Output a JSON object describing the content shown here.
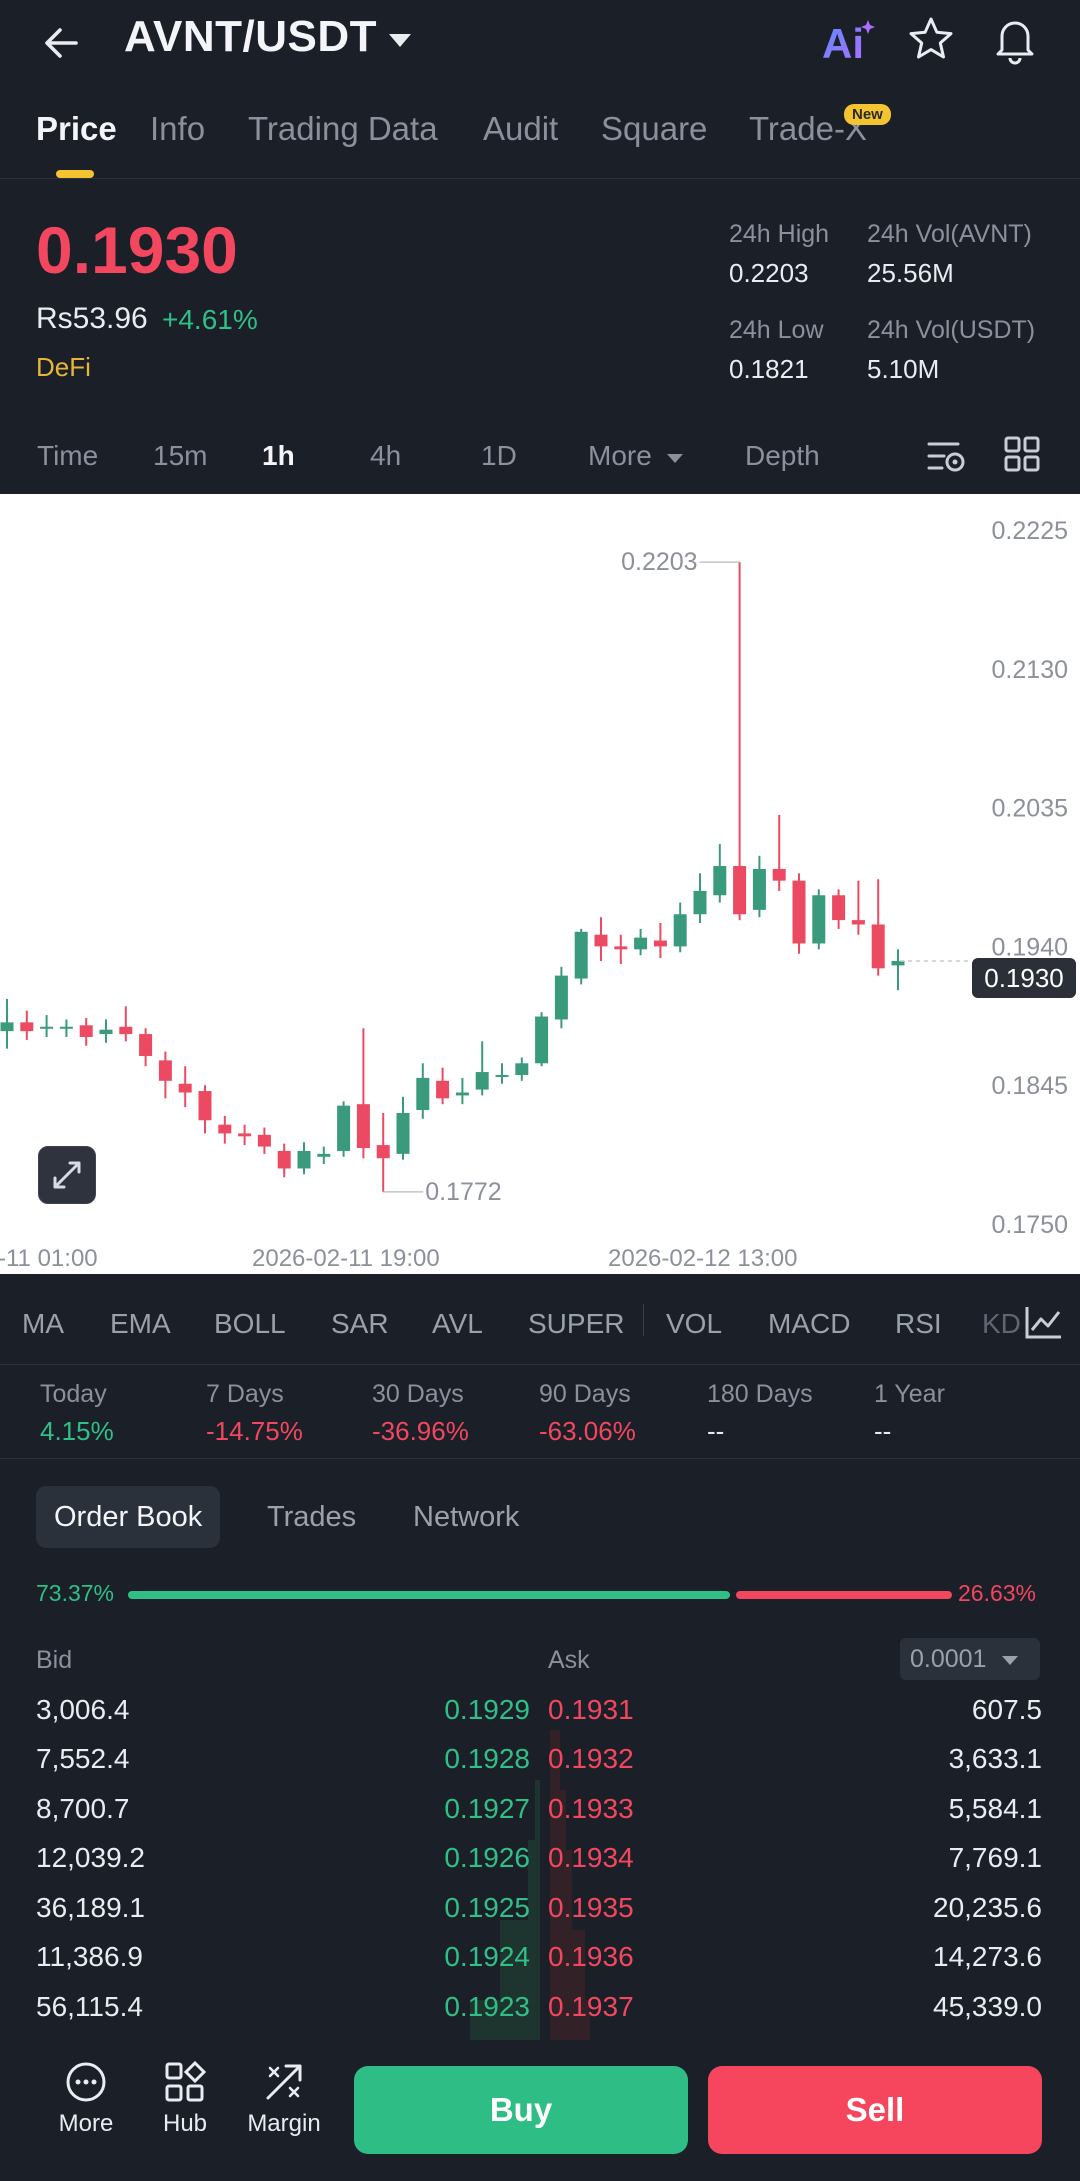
{
  "header": {
    "pair": "AVNT/USDT",
    "ai_label": "Ai"
  },
  "tabs": [
    {
      "label": "Price"
    },
    {
      "label": "Info"
    },
    {
      "label": "Trading Data"
    },
    {
      "label": "Audit"
    },
    {
      "label": "Square"
    },
    {
      "label": "Trade-X"
    }
  ],
  "new_badge": "New",
  "ticker": {
    "last": "0.1930",
    "fiat": "Rs53.96",
    "change": "+4.61%",
    "category": "DeFi",
    "high_label": "24h High",
    "high": "0.2203",
    "vol_base_label": "24h Vol(AVNT)",
    "vol_base": "25.56M",
    "low_label": "24h Low",
    "low": "0.1821",
    "vol_quote_label": "24h Vol(USDT)",
    "vol_quote": "5.10M"
  },
  "intervals": [
    {
      "label": "Time"
    },
    {
      "label": "15m"
    },
    {
      "label": "1h"
    },
    {
      "label": "4h"
    },
    {
      "label": "1D"
    },
    {
      "label": "More"
    },
    {
      "label": "Depth"
    }
  ],
  "chart_data": {
    "type": "candlestick",
    "y_ticks": [
      "0.2225",
      "0.2130",
      "0.2035",
      "0.1940",
      "0.1845",
      "0.1750"
    ],
    "ylim": [
      0.175,
      0.2225
    ],
    "x_ticks": [
      "-11 01:00",
      "2026-02-11 19:00",
      "2026-02-12 13:00"
    ],
    "current_price": "0.1930",
    "max_label": "0.2203",
    "min_label": "0.1772",
    "colors": {
      "up": "#3a9a7c",
      "down": "#ec4a62"
    },
    "candles": [
      [
        0.1882,
        0.1888,
        0.1904,
        0.187
      ],
      [
        0.1888,
        0.1882,
        0.1896,
        0.1876
      ],
      [
        0.1884,
        0.1885,
        0.1893,
        0.1878
      ],
      [
        0.1884,
        0.1885,
        0.189,
        0.1878
      ],
      [
        0.1886,
        0.1878,
        0.1891,
        0.1872
      ],
      [
        0.188,
        0.1883,
        0.189,
        0.1874
      ],
      [
        0.1885,
        0.188,
        0.1899,
        0.1875
      ],
      [
        0.188,
        0.1865,
        0.1884,
        0.1858
      ],
      [
        0.1862,
        0.1848,
        0.1868,
        0.1836
      ],
      [
        0.1846,
        0.184,
        0.1858,
        0.183
      ],
      [
        0.1841,
        0.1821,
        0.1845,
        0.1812
      ],
      [
        0.1818,
        0.1812,
        0.1824,
        0.1805
      ],
      [
        0.1812,
        0.181,
        0.1818,
        0.1804
      ],
      [
        0.1811,
        0.1803,
        0.1816,
        0.1798
      ],
      [
        0.18,
        0.1788,
        0.1805,
        0.1782
      ],
      [
        0.1788,
        0.18,
        0.1806,
        0.1784
      ],
      [
        0.1796,
        0.1798,
        0.1803,
        0.1791
      ],
      [
        0.18,
        0.1831,
        0.1834,
        0.1796
      ],
      [
        0.1832,
        0.1802,
        0.1884,
        0.1795
      ],
      [
        0.1804,
        0.1795,
        0.1826,
        0.1772
      ],
      [
        0.1798,
        0.1826,
        0.1837,
        0.1794
      ],
      [
        0.1828,
        0.185,
        0.186,
        0.1822
      ],
      [
        0.1848,
        0.1836,
        0.1857,
        0.1832
      ],
      [
        0.1838,
        0.184,
        0.185,
        0.1832
      ],
      [
        0.1842,
        0.1854,
        0.1875,
        0.1838
      ],
      [
        0.1852,
        0.1852,
        0.186,
        0.1846
      ],
      [
        0.1852,
        0.186,
        0.1864,
        0.1848
      ],
      [
        0.186,
        0.1892,
        0.1895,
        0.1858
      ],
      [
        0.189,
        0.192,
        0.1926,
        0.1884
      ],
      [
        0.1918,
        0.195,
        0.1952,
        0.1914
      ],
      [
        0.1948,
        0.194,
        0.196,
        0.193
      ],
      [
        0.194,
        0.1938,
        0.1948,
        0.1928
      ],
      [
        0.1938,
        0.1946,
        0.1952,
        0.1934
      ],
      [
        0.1944,
        0.194,
        0.1956,
        0.1932
      ],
      [
        0.194,
        0.1962,
        0.197,
        0.1936
      ],
      [
        0.1962,
        0.1978,
        0.199,
        0.1956
      ],
      [
        0.1975,
        0.1995,
        0.201,
        0.197
      ],
      [
        0.1995,
        0.1962,
        0.2203,
        0.1958
      ],
      [
        0.1965,
        0.1993,
        0.2002,
        0.196
      ],
      [
        0.1993,
        0.1985,
        0.203,
        0.1978
      ],
      [
        0.1985,
        0.1942,
        0.199,
        0.1935
      ],
      [
        0.1942,
        0.1975,
        0.1979,
        0.1938
      ],
      [
        0.1975,
        0.1958,
        0.1979,
        0.1952
      ],
      [
        0.1958,
        0.1955,
        0.1985,
        0.1948
      ],
      [
        0.1955,
        0.1925,
        0.1986,
        0.192
      ],
      [
        0.1927,
        0.193,
        0.1938,
        0.191
      ]
    ]
  },
  "indicators": [
    "MA",
    "EMA",
    "BOLL",
    "SAR",
    "AVL",
    "SUPER",
    "VOL",
    "MACD",
    "RSI",
    "KD"
  ],
  "performance": [
    {
      "label": "Today",
      "value": "4.15%",
      "dir": "up"
    },
    {
      "label": "7 Days",
      "value": "-14.75%",
      "dir": "down"
    },
    {
      "label": "30 Days",
      "value": "-36.96%",
      "dir": "down"
    },
    {
      "label": "90 Days",
      "value": "-63.06%",
      "dir": "down"
    },
    {
      "label": "180 Days",
      "value": "--",
      "dir": "none"
    },
    {
      "label": "1 Year",
      "value": "--",
      "dir": "none"
    }
  ],
  "orderbook": {
    "tabs": [
      {
        "label": "Order Book"
      },
      {
        "label": "Trades"
      },
      {
        "label": "Network"
      }
    ],
    "buy_ratio": "73.37%",
    "sell_ratio": "26.63%",
    "bid_label": "Bid",
    "ask_label": "Ask",
    "precision": "0.0001",
    "rows": [
      {
        "bid_qty": "3,006.4",
        "bid": "0.1929",
        "ask": "0.1931",
        "ask_qty": "607.5"
      },
      {
        "bid_qty": "7,552.4",
        "bid": "0.1928",
        "ask": "0.1932",
        "ask_qty": "3,633.1"
      },
      {
        "bid_qty": "8,700.7",
        "bid": "0.1927",
        "ask": "0.1933",
        "ask_qty": "5,584.1"
      },
      {
        "bid_qty": "12,039.2",
        "bid": "0.1926",
        "ask": "0.1934",
        "ask_qty": "7,769.1"
      },
      {
        "bid_qty": "36,189.1",
        "bid": "0.1925",
        "ask": "0.1935",
        "ask_qty": "20,235.6"
      },
      {
        "bid_qty": "11,386.9",
        "bid": "0.1924",
        "ask": "0.1936",
        "ask_qty": "14,273.6"
      },
      {
        "bid_qty": "56,115.4",
        "bid": "0.1923",
        "ask": "0.1937",
        "ask_qty": "45,339.0"
      }
    ]
  },
  "bottom": {
    "more": "More",
    "hub": "Hub",
    "margin": "Margin",
    "buy": "Buy",
    "sell": "Sell"
  }
}
